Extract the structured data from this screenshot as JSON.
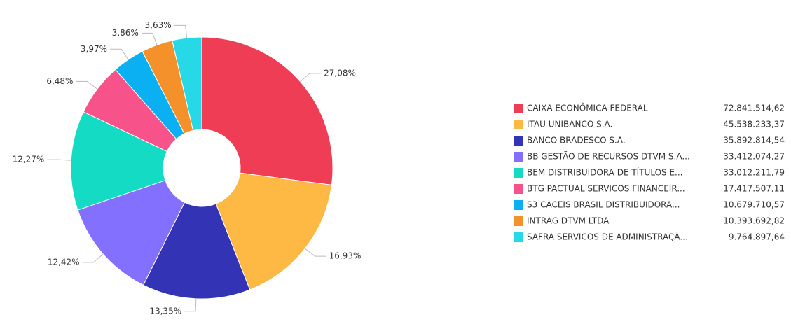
{
  "chart_data": {
    "type": "donut",
    "categories": [
      "CAIXA ECONÔMICA FEDERAL",
      "ITAU UNIBANCO S.A.",
      "BANCO BRADESCO S.A.",
      "BB GESTÃO DE RECURSOS DTVM S.A...",
      "BEM DISTRIBUIDORA DE TÍTULOS E...",
      "BTG PACTUAL SERVICOS FINANCEIR...",
      "S3 CACEIS BRASIL DISTRIBUIDORA...",
      "INTRAG DTVM LTDA",
      "SAFRA SERVICOS DE ADMINISTRAÇÃ..."
    ],
    "values": [
      72841514.62,
      45538233.37,
      35892814.54,
      33412074.27,
      33012211.79,
      17417507.11,
      10679710.57,
      10393692.82,
      9764897.64
    ],
    "value_labels": [
      "72.841.514,62",
      "45.538.233,37",
      "35.892.814,54",
      "33.412.074,27",
      "33.012.211,79",
      "17.417.507,11",
      "10.679.710,57",
      "10.393.692,82",
      "9.764.897,64"
    ],
    "percent_values": [
      27.08,
      16.93,
      13.35,
      12.42,
      12.27,
      6.48,
      3.97,
      3.86,
      3.63
    ],
    "percent_labels": [
      "27,08%",
      "16,93%",
      "13,35%",
      "12,42%",
      "12,27%",
      "6,48%",
      "3,97%",
      "3,86%",
      "3,63%"
    ],
    "colors": [
      "#ee3d55",
      "#fdb944",
      "#3333b5",
      "#8470ff",
      "#14dbc3",
      "#f7538a",
      "#0bb0f3",
      "#f5912a",
      "#27d9e6"
    ],
    "legend": "right"
  }
}
